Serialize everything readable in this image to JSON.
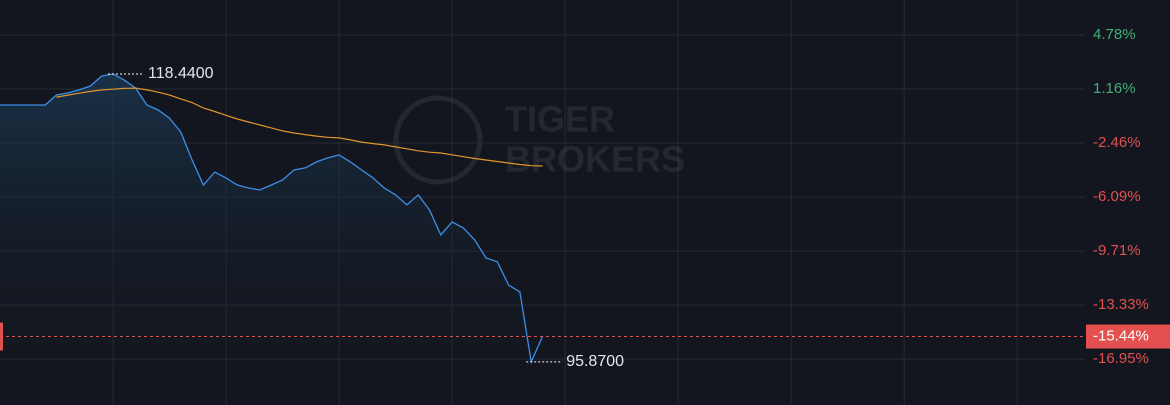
{
  "chart_data": {
    "type": "line",
    "watermark": [
      "TIGER",
      "BROKERS"
    ],
    "x": [
      0,
      1,
      2,
      3,
      4,
      5,
      6,
      7,
      8,
      9,
      10,
      11,
      12,
      13,
      14,
      15,
      16,
      17,
      18,
      19,
      20,
      21,
      22,
      23,
      24,
      25,
      26,
      27,
      28,
      29,
      30,
      31,
      32,
      33,
      34,
      35,
      36,
      37,
      38,
      39,
      40,
      41,
      42,
      43,
      44,
      45,
      46,
      47,
      48
    ],
    "xlim": [
      0,
      96
    ],
    "ylim": [
      -19.36,
      7.13
    ],
    "yticks": [
      {
        "value": 4.78,
        "label": "4.78%"
      },
      {
        "value": 1.16,
        "label": "1.16%"
      },
      {
        "value": -2.46,
        "label": "-2.46%"
      },
      {
        "value": -6.09,
        "label": "-6.09%"
      },
      {
        "value": -9.71,
        "label": "-9.71%"
      },
      {
        "value": -13.33,
        "label": "-13.33%"
      },
      {
        "value": -16.95,
        "label": "-16.95%"
      }
    ],
    "grid": true,
    "up_color": "#3fae78",
    "down_color": "#e2504f",
    "series": [
      {
        "color": "#3b8fe6",
        "values": [
          0.09,
          0.09,
          0.09,
          0.09,
          0.09,
          0.76,
          0.9,
          1.1,
          1.36,
          2.03,
          2.17,
          1.76,
          1.22,
          0.09,
          -0.25,
          -0.8,
          -1.73,
          -3.6,
          -5.28,
          -4.41,
          -4.8,
          -5.28,
          -5.48,
          -5.61,
          -5.28,
          -4.94,
          -4.27,
          -4.13,
          -3.73,
          -3.46,
          -3.26,
          -3.73,
          -4.27,
          -4.8,
          -5.48,
          -5.94,
          -6.61,
          -5.94,
          -6.95,
          -8.62,
          -7.75,
          -8.16,
          -8.96,
          -10.17,
          -10.43,
          -11.98,
          -12.45,
          -17.14,
          -15.44
        ]
      },
      {
        "color": "#e0962c",
        "values": [
          null,
          null,
          null,
          null,
          null,
          0.62,
          0.75,
          0.88,
          1.0,
          1.1,
          1.15,
          1.2,
          1.22,
          1.1,
          0.95,
          0.76,
          0.5,
          0.25,
          -0.11,
          -0.35,
          -0.6,
          -0.85,
          -1.05,
          -1.25,
          -1.45,
          -1.65,
          -1.79,
          -1.9,
          -2.0,
          -2.08,
          -2.12,
          -2.25,
          -2.4,
          -2.5,
          -2.59,
          -2.72,
          -2.85,
          -2.98,
          -3.08,
          -3.13,
          -3.25,
          -3.38,
          -3.5,
          -3.6,
          -3.7,
          -3.8,
          -3.9,
          -3.98,
          -4.0
        ]
      }
    ],
    "annotations": [
      {
        "x": 10,
        "y": 2.17,
        "label": "118.4400"
      },
      {
        "x": 47,
        "y": -17.14,
        "label": "95.8700"
      }
    ],
    "current": {
      "value": -15.44,
      "label": "-15.44%"
    }
  }
}
